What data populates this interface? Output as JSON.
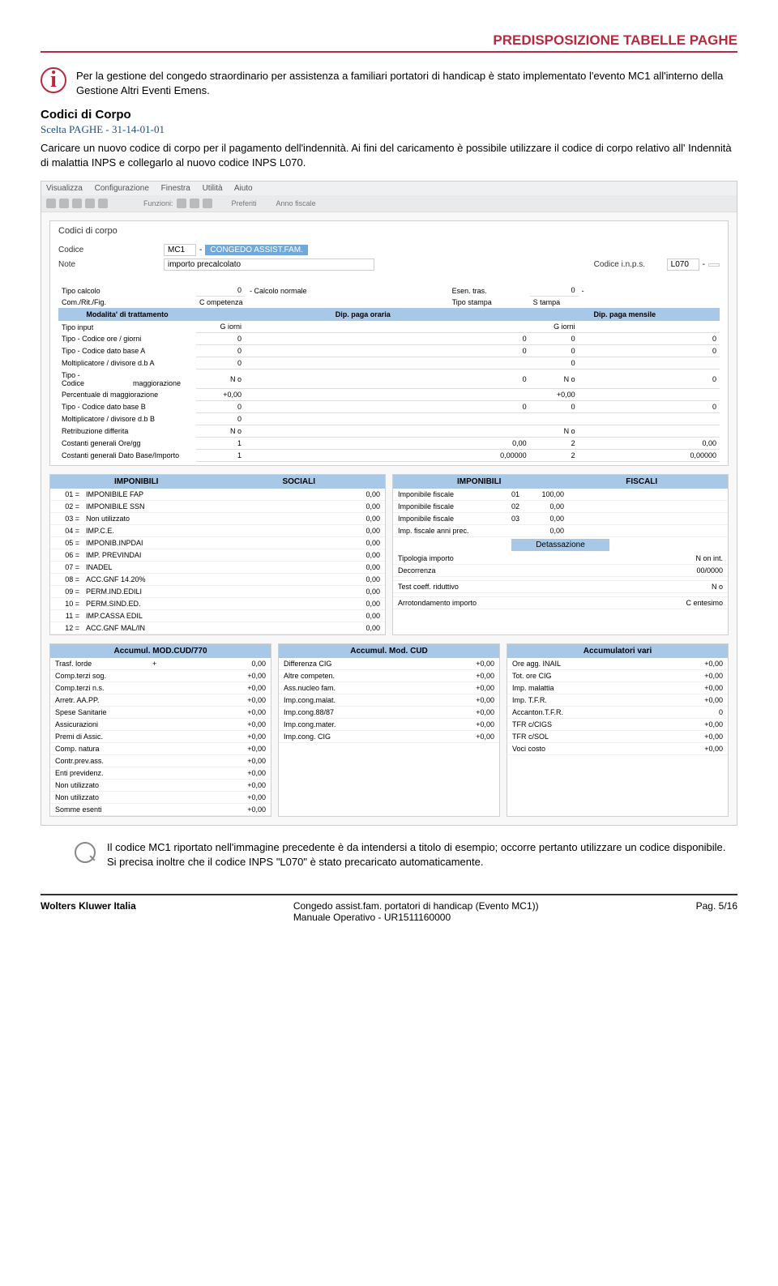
{
  "header": "PREDISPOSIZIONE TABELLE PAGHE",
  "info": "Per la gestione del congedo straordinario per assistenza a familiari portatori di handicap è stato implementato l'evento MC1 all'interno della Gestione Altri Eventi Emens.",
  "sectionTitle": "Codici di Corpo",
  "sectionSub": "Scelta PAGHE - 31-14-01-01",
  "bodyText": "Caricare un nuovo codice di corpo per il pagamento dell'indennità. Ai fini del caricamento è possibile utilizzare il codice di corpo relativo all' Indennità di malattia INPS e collegarlo al nuovo codice INPS L070.",
  "menu": [
    "Visualizza",
    "Configurazione",
    "Finestra",
    "Utilità",
    "Aiuto"
  ],
  "toolbarWords": [
    "Funzioni:",
    "Preferiti",
    "Anno fiscale"
  ],
  "panelTitle": "Codici di corpo",
  "form": {
    "codiceLbl": "Codice",
    "codiceVal": "MC1",
    "codiceDesc": "CONGEDO ASSIST.FAM.",
    "noteLbl": "Note",
    "noteVal": "importo precalcolato",
    "inpsLbl": "Codice i.n.p.s.",
    "inpsVal": "L070",
    "tipoCalcLbl": "Tipo calcolo",
    "tipoCalcVal": "0",
    "tipoCalcDesc": "Calcolo normale",
    "esenLbl": "Esen. tras.",
    "esenVal": "0",
    "comLbl": "Com./Rit./Fig.",
    "comVal": "C ompetenza",
    "stampaLbl": "Tipo stampa",
    "stampaVal": "S tampa"
  },
  "gridHdr": [
    "Modalita' di trattamento",
    "Dip. paga oraria",
    "Dip. paga mensile"
  ],
  "gridRows": [
    {
      "l": "Tipo input",
      "a": "G iorni",
      "b": "G iorni"
    },
    {
      "l": "Tipo - Codice ore / giorni",
      "a": "0",
      "a2": "0",
      "b": "0",
      "b2": "0"
    },
    {
      "l": "Tipo - Codice dato base A",
      "a": "0",
      "a2": "0",
      "b": "0",
      "b2": "0"
    },
    {
      "l": "Moltiplicatore / divisore d.b A",
      "a": "0",
      "b": "0"
    },
    {
      "l": "Tipo - Codice",
      "m": "maggiorazione",
      "a": "N o",
      "a2": "0",
      "b": "N o",
      "b2": "0"
    },
    {
      "l": "Percentuale di maggiorazione",
      "a": "+0,00",
      "b": "+0,00"
    },
    {
      "l": "Tipo - Codice dato base B",
      "a": "0",
      "a2": "0",
      "b": "0",
      "b2": "0"
    },
    {
      "l": "Moltiplicatore / divisore d.b B",
      "a": "0",
      "b": ""
    },
    {
      "l": "Retribuzione differita",
      "a": "N o",
      "b": "N o"
    },
    {
      "l": "Costanti generali Ore/gg",
      "a": "1",
      "a2": "0,00",
      "b": "2",
      "b2": "0,00"
    },
    {
      "l": "Costanti generali Dato Base/Importo",
      "a": "1",
      "a2": "0,00000",
      "b": "2",
      "b2": "0,00000"
    }
  ],
  "impBox1": {
    "hdr": [
      "IMPONIBILI",
      "SOCIALI"
    ],
    "rows": [
      [
        "01 =",
        "IMPONIBILE FAP",
        "0,00"
      ],
      [
        "02 =",
        "IMPONIBILE SSN",
        "0,00"
      ],
      [
        "03 =",
        "Non utilizzato",
        "0,00"
      ],
      [
        "04 =",
        "IMP.C.E.",
        "0,00"
      ],
      [
        "05 =",
        "IMPONIB.INPDAI",
        "0,00"
      ],
      [
        "06 =",
        "IMP. PREVINDAI",
        "0,00"
      ],
      [
        "07 =",
        "INADEL",
        "0,00"
      ],
      [
        "08 =",
        "ACC.GNF 14.20%",
        "0,00"
      ],
      [
        "09 =",
        "PERM.IND.EDILI",
        "0,00"
      ],
      [
        "10 =",
        "PERM.SIND.ED.",
        "0,00"
      ],
      [
        "11 =",
        "IMP.CASSA EDIL",
        "0,00"
      ],
      [
        "12 =",
        "ACC.GNF MAL/IN",
        "0,00"
      ]
    ]
  },
  "impBox2": {
    "hdr": [
      "IMPONIBILI",
      "FISCALI"
    ],
    "rows": [
      [
        "Imponibile fiscale",
        "01",
        "100,00"
      ],
      [
        "Imponibile fiscale",
        "02",
        "0,00"
      ],
      [
        "Imponibile fiscale",
        "03",
        "0,00"
      ],
      [
        "Imp. fiscale anni prec.",
        "",
        "0,00"
      ]
    ],
    "detass": "Detassazione",
    "extra": [
      [
        "Tipologia importo",
        "N on int."
      ],
      [
        "Decorrenza",
        "00/0000"
      ],
      [
        "",
        ""
      ],
      [
        "Test coeff. riduttivo",
        "N o"
      ],
      [
        "",
        ""
      ],
      [
        "Arrotondamento importo",
        "C entesimo"
      ]
    ]
  },
  "acc1": {
    "hdr": "Accumul. MOD.CUD/770",
    "rows": [
      [
        "Trasf. lorde",
        "+",
        "0,00"
      ],
      [
        "Comp.terzi sog.",
        "",
        "+0,00"
      ],
      [
        "Comp.terzi n.s.",
        "",
        "+0,00"
      ],
      [
        "Arretr. AA.PP.",
        "",
        "+0,00"
      ],
      [
        "Spese Sanitarie",
        "",
        "+0,00"
      ],
      [
        "Assicurazioni",
        "",
        "+0,00"
      ],
      [
        "Premi di Assic.",
        "",
        "+0,00"
      ],
      [
        "Comp. natura",
        "",
        "+0,00"
      ],
      [
        "Contr.prev.ass.",
        "",
        "+0,00"
      ],
      [
        "Enti previdenz.",
        "",
        "+0,00"
      ],
      [
        "Non utilizzato",
        "",
        "+0,00"
      ],
      [
        "Non utilizzato",
        "",
        "+0,00"
      ],
      [
        "Somme esenti",
        "",
        "+0,00"
      ]
    ]
  },
  "acc2": {
    "hdr": "Accumul. Mod. CUD",
    "rows": [
      [
        "Differenza CIG",
        "+0,00"
      ],
      [
        "Altre competen.",
        "+0,00"
      ],
      [
        "Ass.nucleo fam.",
        "+0,00"
      ],
      [
        "Imp.cong.malat.",
        "+0,00"
      ],
      [
        "Imp.cong.88/87",
        "+0,00"
      ],
      [
        "Imp.cong.mater.",
        "+0,00"
      ],
      [
        "Imp.cong. CIG",
        "+0,00"
      ]
    ]
  },
  "acc3": {
    "hdr": "Accumulatori vari",
    "rows": [
      [
        "Ore agg. INAIL",
        "+0,00"
      ],
      [
        "Tot. ore CIG",
        "+0,00"
      ],
      [
        "Imp. malattia",
        "+0,00"
      ],
      [
        "Imp. T.F.R.",
        "+0,00"
      ],
      [
        "Accanton.T.F.R.",
        "0"
      ],
      [
        "TFR c/CIGS",
        "+0,00"
      ],
      [
        "TFR c/SOL",
        "+0,00"
      ],
      [
        "Voci costo",
        "+0,00"
      ]
    ]
  },
  "noteText": "Il codice MC1 riportato nell'immagine precedente è da intendersi a titolo di esempio; occorre pertanto utilizzare un codice disponibile.\nSi precisa inoltre che il codice INPS \"L070\" è stato precaricato automaticamente.",
  "footer": {
    "left": "Wolters Kluwer Italia",
    "center": "Congedo assist.fam. portatori di handicap (Evento MC1))\nManuale Operativo - UR1511160000",
    "right": "Pag. 5/16"
  }
}
